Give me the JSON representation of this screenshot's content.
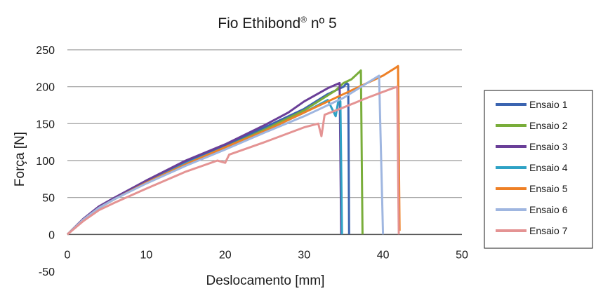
{
  "chart_data": {
    "type": "line",
    "title": "Fio Ethibond",
    "title_sup": "®",
    "title_suffix": " nº 5",
    "xlabel": "Deslocamento [mm]",
    "ylabel": "Força [N]",
    "xlim": [
      0,
      50
    ],
    "ylim": [
      -50,
      250
    ],
    "xticks": [
      0,
      10,
      20,
      30,
      40,
      50
    ],
    "yticks": [
      -50,
      0,
      50,
      100,
      150,
      200,
      250
    ],
    "grid": "horizontal",
    "legend_position": "right",
    "series": [
      {
        "name": "Ensaio 1",
        "color": "#3b64b0",
        "points": [
          [
            0,
            0
          ],
          [
            2,
            20
          ],
          [
            4,
            36
          ],
          [
            6,
            48
          ],
          [
            10,
            72
          ],
          [
            15,
            98
          ],
          [
            20,
            120
          ],
          [
            25,
            145
          ],
          [
            30,
            170
          ],
          [
            33,
            190
          ],
          [
            35,
            200
          ],
          [
            35.4,
            205
          ],
          [
            35.6,
            203
          ],
          [
            35.7,
            0
          ]
        ]
      },
      {
        "name": "Ensaio 2",
        "color": "#79ad3a",
        "points": [
          [
            0,
            0
          ],
          [
            2,
            20
          ],
          [
            4,
            36
          ],
          [
            6,
            48
          ],
          [
            10,
            70
          ],
          [
            15,
            95
          ],
          [
            20,
            118
          ],
          [
            25,
            142
          ],
          [
            30,
            168
          ],
          [
            34,
            195
          ],
          [
            35,
            205
          ],
          [
            36,
            210
          ],
          [
            37,
            220
          ],
          [
            37.2,
            222
          ],
          [
            37.4,
            0
          ]
        ]
      },
      {
        "name": "Ensaio 3",
        "color": "#6a3f98",
        "points": [
          [
            0,
            0
          ],
          [
            2,
            21
          ],
          [
            4,
            38
          ],
          [
            6,
            50
          ],
          [
            10,
            73
          ],
          [
            15,
            100
          ],
          [
            20,
            122
          ],
          [
            25,
            148
          ],
          [
            28,
            165
          ],
          [
            30,
            180
          ],
          [
            33,
            198
          ],
          [
            34.5,
            205
          ],
          [
            34.7,
            0
          ]
        ]
      },
      {
        "name": "Ensaio 4",
        "color": "#2fa2c5",
        "points": [
          [
            0,
            0
          ],
          [
            2,
            20
          ],
          [
            4,
            36
          ],
          [
            6,
            48
          ],
          [
            10,
            70
          ],
          [
            15,
            96
          ],
          [
            20,
            118
          ],
          [
            25,
            140
          ],
          [
            30,
            165
          ],
          [
            33,
            182
          ],
          [
            34,
            160
          ],
          [
            34.4,
            185
          ],
          [
            34.6,
            180
          ],
          [
            34.8,
            0
          ]
        ]
      },
      {
        "name": "Ensaio 5",
        "color": "#ee8026",
        "points": [
          [
            0,
            0
          ],
          [
            2,
            20
          ],
          [
            4,
            36
          ],
          [
            6,
            48
          ],
          [
            10,
            70
          ],
          [
            15,
            95
          ],
          [
            20,
            118
          ],
          [
            25,
            140
          ],
          [
            30,
            165
          ],
          [
            35,
            190
          ],
          [
            38,
            205
          ],
          [
            40,
            215
          ],
          [
            41.5,
            225
          ],
          [
            41.9,
            228
          ],
          [
            42.1,
            5
          ]
        ]
      },
      {
        "name": "Ensaio 6",
        "color": "#9fb6e0",
        "points": [
          [
            0,
            0
          ],
          [
            2,
            20
          ],
          [
            4,
            36
          ],
          [
            6,
            48
          ],
          [
            10,
            69
          ],
          [
            15,
            93
          ],
          [
            20,
            115
          ],
          [
            25,
            138
          ],
          [
            30,
            160
          ],
          [
            35,
            185
          ],
          [
            38,
            205
          ],
          [
            39.5,
            215
          ],
          [
            40,
            0
          ]
        ]
      },
      {
        "name": "Ensaio 7",
        "color": "#e49393",
        "points": [
          [
            0,
            0
          ],
          [
            2,
            18
          ],
          [
            4,
            33
          ],
          [
            6,
            43
          ],
          [
            10,
            62
          ],
          [
            15,
            85
          ],
          [
            19,
            100
          ],
          [
            20,
            97
          ],
          [
            20.5,
            108
          ],
          [
            25,
            125
          ],
          [
            30,
            145
          ],
          [
            31.8,
            150
          ],
          [
            32.2,
            133
          ],
          [
            32.6,
            162
          ],
          [
            35,
            172
          ],
          [
            38,
            185
          ],
          [
            41,
            197
          ],
          [
            41.8,
            200
          ],
          [
            42,
            0
          ]
        ]
      }
    ]
  }
}
